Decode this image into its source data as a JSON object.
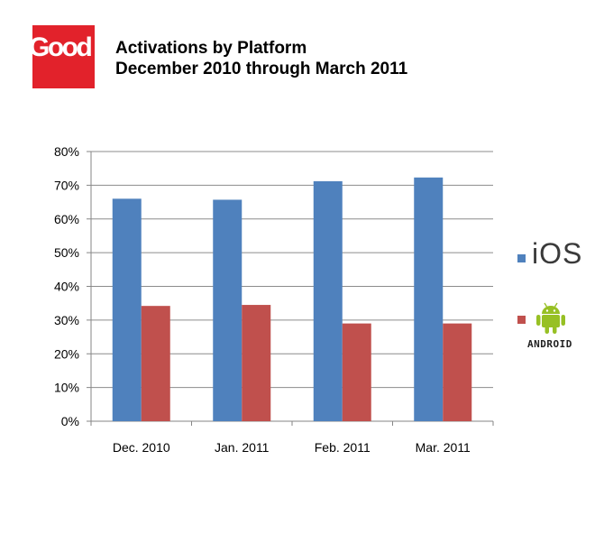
{
  "logo": {
    "text": "Good",
    "color": "#e2222b"
  },
  "header": {
    "title_line1": "Activations by Platform",
    "title_line2": "December 2010 through March 2011"
  },
  "chart_data": {
    "type": "bar",
    "categories": [
      "Dec. 2010",
      "Jan. 2011",
      "Feb. 2011",
      "Mar. 2011"
    ],
    "series": [
      {
        "name": "iOS",
        "color": "#4f81bd",
        "values": [
          66,
          65.7,
          71.2,
          72.3
        ]
      },
      {
        "name": "Android",
        "color": "#c0504d",
        "values": [
          34.2,
          34.5,
          29,
          29
        ]
      }
    ],
    "ylim": [
      0,
      80
    ],
    "yticks": [
      0,
      10,
      20,
      30,
      40,
      50,
      60,
      70,
      80
    ],
    "ytick_labels": [
      "0%",
      "10%",
      "20%",
      "30%",
      "40%",
      "50%",
      "60%",
      "70%",
      "80%"
    ],
    "grid": true,
    "legend": "right"
  },
  "legend": {
    "ios_label": "iOS",
    "android_label": "ANDROID",
    "android_icon": "android-robot-icon"
  }
}
